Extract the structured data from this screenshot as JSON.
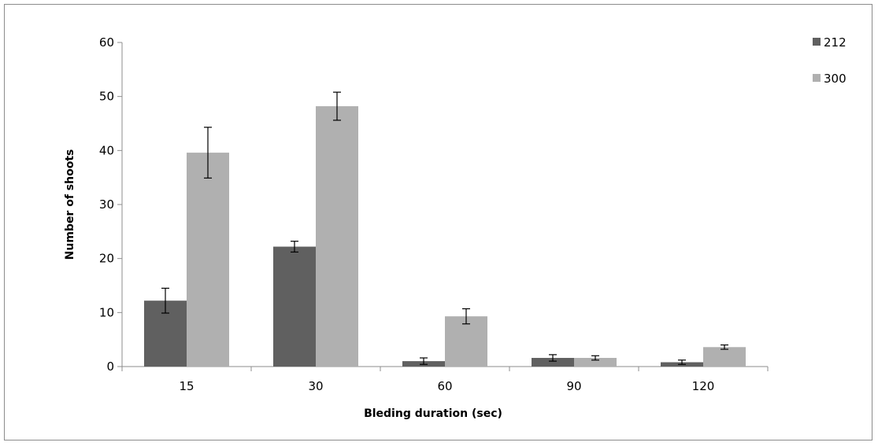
{
  "chart_data": {
    "type": "bar",
    "title": "",
    "xlabel": "Bleding duration (sec)",
    "ylabel": "Number of shoots",
    "categories": [
      "15",
      "30",
      "60",
      "90",
      "120"
    ],
    "ylim": [
      0,
      60
    ],
    "yticks": [
      "0",
      "10",
      "20",
      "30",
      "40",
      "50",
      "60"
    ],
    "grid": false,
    "legend_position": "top-right",
    "series": [
      {
        "name": "212",
        "color": "#606060",
        "values": [
          12.2,
          22.2,
          1.0,
          1.6,
          0.8
        ],
        "errors": [
          2.3,
          1.0,
          0.6,
          0.6,
          0.4
        ]
      },
      {
        "name": "300",
        "color": "#b0b0b0",
        "values": [
          39.6,
          48.2,
          9.3,
          1.6,
          3.6
        ],
        "errors": [
          4.7,
          2.6,
          1.4,
          0.4,
          0.4
        ]
      }
    ]
  }
}
